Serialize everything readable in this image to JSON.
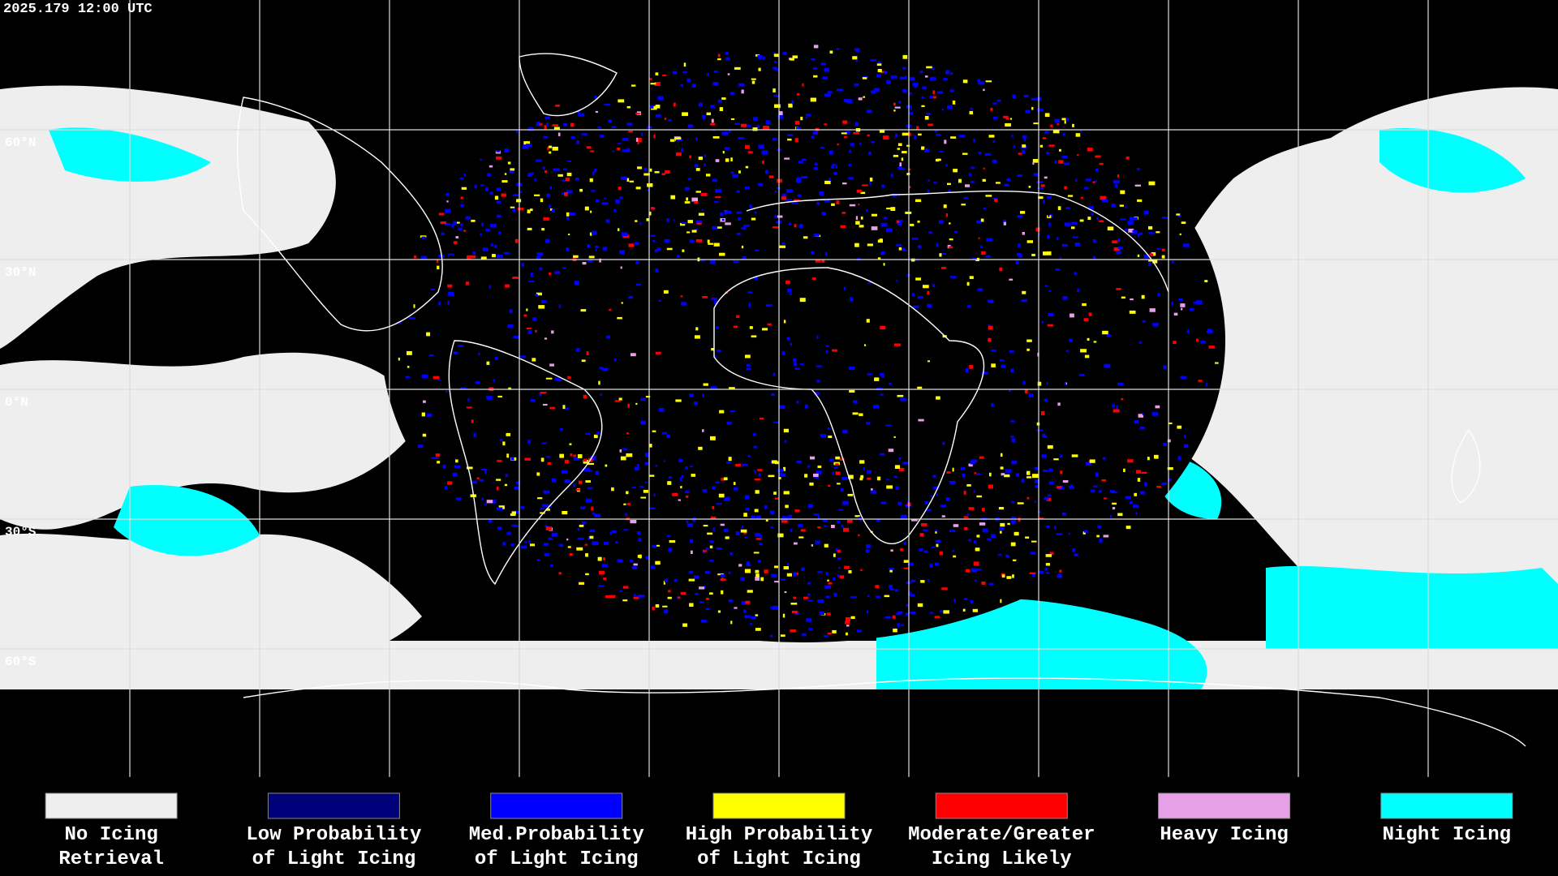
{
  "header": {
    "timestamp": "2025.179 12:00 UTC"
  },
  "latitude_labels": [
    "60°N",
    "30°N",
    "0°N",
    "30°S",
    "60°S"
  ],
  "legend": {
    "items": [
      {
        "label": [
          "No Icing",
          "Retrieval"
        ],
        "color": "#eeeeee"
      },
      {
        "label": [
          "Low Probability",
          "of Light Icing"
        ],
        "color": "#00007a"
      },
      {
        "label": [
          "Med.Probability",
          "of Light Icing"
        ],
        "color": "#0000ff"
      },
      {
        "label": [
          "High Probability",
          "of Light Icing"
        ],
        "color": "#ffff00"
      },
      {
        "label": [
          "Moderate/Greater",
          "Icing Likely"
        ],
        "color": "#ff0000"
      },
      {
        "label": [
          "Heavy Icing"
        ],
        "color": "#e6a0e6"
      },
      {
        "label": [
          "Night Icing"
        ],
        "color": "#00ffff"
      }
    ]
  }
}
